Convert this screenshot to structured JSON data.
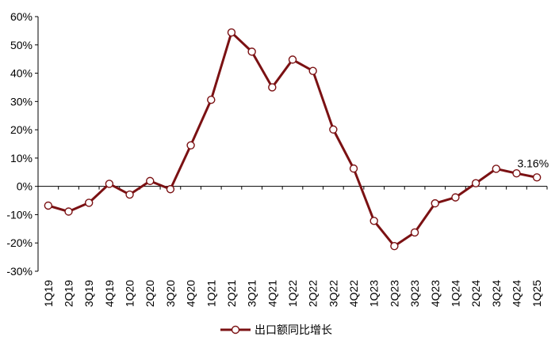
{
  "chart_data": {
    "type": "line",
    "x": [
      "1Q19",
      "2Q19",
      "3Q19",
      "4Q19",
      "1Q20",
      "2Q20",
      "3Q20",
      "4Q20",
      "1Q21",
      "2Q21",
      "3Q21",
      "4Q21",
      "1Q22",
      "2Q22",
      "3Q22",
      "4Q22",
      "1Q23",
      "2Q23",
      "3Q23",
      "4Q23",
      "1Q24",
      "2Q24",
      "3Q24",
      "4Q24",
      "1Q25"
    ],
    "series": [
      {
        "name": "出口额同比增长",
        "values": [
          -6.8,
          -8.9,
          -5.8,
          0.9,
          -2.9,
          1.9,
          -1.0,
          14.5,
          30.6,
          54.4,
          47.6,
          35.0,
          44.8,
          40.8,
          20.1,
          6.3,
          -12.2,
          -21.1,
          -16.3,
          -6.0,
          -3.9,
          1.1,
          6.2,
          4.6,
          3.16
        ]
      }
    ],
    "ylim": [
      -30,
      60
    ],
    "yticks": [
      -30,
      -20,
      -10,
      0,
      10,
      20,
      30,
      40,
      50,
      60
    ],
    "ytick_labels": [
      "-30%",
      "-20%",
      "-10%",
      "0%",
      "10%",
      "20%",
      "30%",
      "40%",
      "50%",
      "60%"
    ],
    "annotation": {
      "index": 24,
      "text": "3.16%"
    },
    "grid": false,
    "legend_position": "bottom-center",
    "colors": {
      "line": "#7b1113",
      "marker_fill": "#ffffff",
      "axis": "#000000"
    }
  }
}
